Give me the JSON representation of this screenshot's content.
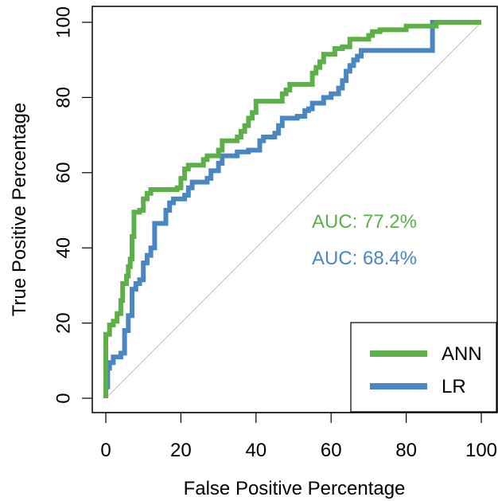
{
  "chart_data": {
    "type": "line",
    "title": "",
    "xlabel": "False Positive Percentage",
    "ylabel": "True Positive Percentage",
    "xlim": [
      -4,
      104
    ],
    "ylim": [
      -4,
      104
    ],
    "xticks": [
      0,
      20,
      40,
      60,
      80,
      100
    ],
    "yticks": [
      0,
      20,
      40,
      60,
      80,
      100
    ],
    "xtick_labels": [
      "0",
      "20",
      "40",
      "60",
      "80",
      "100"
    ],
    "ytick_labels": [
      "0",
      "20",
      "40",
      "60",
      "80",
      "100"
    ],
    "reversed_x": false,
    "grid": false,
    "legend_position": "bottom-right",
    "reference_line": {
      "from": [
        0,
        0
      ],
      "to": [
        100,
        100
      ],
      "color": "#c0c0c0"
    },
    "series": [
      {
        "name": "ANN",
        "color": "#5cb047",
        "auc_label": "AUC: 77.2%",
        "points": [
          [
            0,
            0
          ],
          [
            0,
            17
          ],
          [
            1,
            17
          ],
          [
            1,
            19.5
          ],
          [
            2,
            19.5
          ],
          [
            2,
            20.5
          ],
          [
            3,
            20.5
          ],
          [
            3,
            22.5
          ],
          [
            4,
            22.5
          ],
          [
            4,
            26
          ],
          [
            4.5,
            26
          ],
          [
            4.5,
            30.5
          ],
          [
            5.5,
            30.5
          ],
          [
            5.5,
            32.5
          ],
          [
            6,
            32.5
          ],
          [
            6,
            35
          ],
          [
            6.5,
            35
          ],
          [
            6.5,
            37
          ],
          [
            7,
            37
          ],
          [
            7,
            43
          ],
          [
            7.5,
            43
          ],
          [
            7.5,
            49.5
          ],
          [
            9,
            49.5
          ],
          [
            9,
            50
          ],
          [
            10,
            50
          ],
          [
            10,
            53
          ],
          [
            11,
            53
          ],
          [
            11,
            54.5
          ],
          [
            12,
            54.5
          ],
          [
            12,
            55.5
          ],
          [
            19,
            55.5
          ],
          [
            19,
            56
          ],
          [
            20,
            56
          ],
          [
            20,
            58.5
          ],
          [
            21,
            58.5
          ],
          [
            21,
            61
          ],
          [
            22,
            61
          ],
          [
            22,
            62
          ],
          [
            26,
            62
          ],
          [
            26,
            63.5
          ],
          [
            27,
            63.5
          ],
          [
            27,
            64.5
          ],
          [
            30,
            64.5
          ],
          [
            30,
            66
          ],
          [
            31,
            66
          ],
          [
            31,
            68.5
          ],
          [
            35,
            68.5
          ],
          [
            35,
            69.5
          ],
          [
            36,
            69.5
          ],
          [
            36,
            71
          ],
          [
            37,
            71
          ],
          [
            37,
            72.5
          ],
          [
            38,
            72.5
          ],
          [
            38,
            74.5
          ],
          [
            39,
            74.5
          ],
          [
            39,
            76
          ],
          [
            40,
            76
          ],
          [
            40,
            79
          ],
          [
            47,
            79
          ],
          [
            47,
            81
          ],
          [
            48,
            81
          ],
          [
            48,
            82
          ],
          [
            49,
            82
          ],
          [
            49,
            83.5
          ],
          [
            55,
            83.5
          ],
          [
            55,
            86.5
          ],
          [
            56,
            86.5
          ],
          [
            56,
            88
          ],
          [
            57,
            88
          ],
          [
            57,
            89.5
          ],
          [
            58,
            89.5
          ],
          [
            58,
            91.5
          ],
          [
            61,
            91.5
          ],
          [
            61,
            93
          ],
          [
            63,
            93
          ],
          [
            63,
            93.5
          ],
          [
            65,
            93.5
          ],
          [
            65,
            95.5
          ],
          [
            70,
            95.5
          ],
          [
            70,
            96.5
          ],
          [
            71,
            96.5
          ],
          [
            71,
            97.5
          ],
          [
            73,
            97.5
          ],
          [
            73,
            98
          ],
          [
            80,
            98
          ],
          [
            80,
            99
          ],
          [
            88,
            99
          ],
          [
            88,
            100
          ],
          [
            100,
            100
          ]
        ]
      },
      {
        "name": "LR",
        "color": "#4a86c1",
        "auc_label": "AUC: 68.4%",
        "points": [
          [
            0,
            0
          ],
          [
            0,
            3
          ],
          [
            0.5,
            3
          ],
          [
            0.5,
            8
          ],
          [
            1,
            8
          ],
          [
            1,
            9.5
          ],
          [
            2,
            9.5
          ],
          [
            2,
            11
          ],
          [
            4,
            11
          ],
          [
            4,
            12
          ],
          [
            5,
            12
          ],
          [
            5,
            18
          ],
          [
            6,
            18
          ],
          [
            6,
            22
          ],
          [
            7,
            22
          ],
          [
            7,
            29
          ],
          [
            8,
            29
          ],
          [
            8,
            30.5
          ],
          [
            9,
            30.5
          ],
          [
            9,
            31.5
          ],
          [
            10,
            31.5
          ],
          [
            10,
            36
          ],
          [
            11,
            36
          ],
          [
            11,
            38
          ],
          [
            12,
            38
          ],
          [
            12,
            40
          ],
          [
            13,
            40
          ],
          [
            13,
            46.5
          ],
          [
            16,
            46.5
          ],
          [
            16,
            50
          ],
          [
            17,
            50
          ],
          [
            17,
            52
          ],
          [
            18,
            52
          ],
          [
            18,
            53
          ],
          [
            21,
            53
          ],
          [
            21,
            54
          ],
          [
            22,
            54
          ],
          [
            22,
            56
          ],
          [
            23,
            56
          ],
          [
            23,
            57.5
          ],
          [
            27,
            57.5
          ],
          [
            27,
            58.5
          ],
          [
            28,
            58.5
          ],
          [
            28,
            60.5
          ],
          [
            30,
            60.5
          ],
          [
            30,
            62.5
          ],
          [
            31,
            62.5
          ],
          [
            31,
            64.5
          ],
          [
            35,
            64.5
          ],
          [
            35,
            65.5
          ],
          [
            38,
            65.5
          ],
          [
            38,
            66
          ],
          [
            41,
            66
          ],
          [
            41,
            68.5
          ],
          [
            42,
            68.5
          ],
          [
            42,
            69.5
          ],
          [
            45,
            69.5
          ],
          [
            45,
            70.5
          ],
          [
            46,
            70.5
          ],
          [
            46,
            72.5
          ],
          [
            47,
            72.5
          ],
          [
            47,
            74.5
          ],
          [
            51,
            74.5
          ],
          [
            51,
            75
          ],
          [
            53,
            75
          ],
          [
            53,
            76.5
          ],
          [
            54,
            76.5
          ],
          [
            54,
            77
          ],
          [
            55,
            77
          ],
          [
            55,
            78.5
          ],
          [
            58,
            78.5
          ],
          [
            58,
            80
          ],
          [
            60,
            80
          ],
          [
            60,
            81
          ],
          [
            62,
            81
          ],
          [
            62,
            82.5
          ],
          [
            63,
            82.5
          ],
          [
            63,
            84.5
          ],
          [
            64,
            84.5
          ],
          [
            64,
            87
          ],
          [
            65,
            87
          ],
          [
            65,
            88.5
          ],
          [
            66,
            88.5
          ],
          [
            66,
            90
          ],
          [
            67,
            90
          ],
          [
            67,
            91
          ],
          [
            68,
            91
          ],
          [
            68,
            92.5
          ],
          [
            73,
            92.5
          ],
          [
            73,
            92.5
          ],
          [
            87,
            92.5
          ],
          [
            87,
            100
          ],
          [
            100,
            100
          ]
        ]
      }
    ]
  }
}
